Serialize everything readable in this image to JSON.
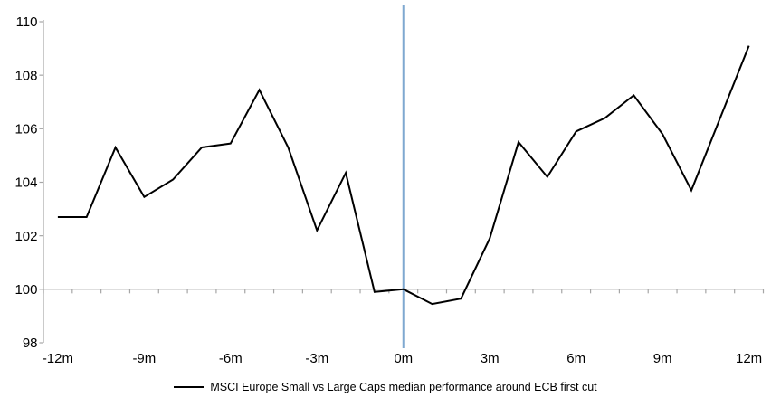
{
  "chart_data": {
    "type": "line",
    "title": "",
    "xlabel": "",
    "ylabel": "",
    "xlim": [
      -12.5,
      12.5
    ],
    "ylim": [
      98,
      110
    ],
    "yticks": [
      98,
      100,
      102,
      104,
      106,
      108,
      110
    ],
    "xticks": [
      {
        "m": -12,
        "label": "-12m"
      },
      {
        "m": -9,
        "label": "-9m"
      },
      {
        "m": -6,
        "label": "-6m"
      },
      {
        "m": -3,
        "label": "-3m"
      },
      {
        "m": 0,
        "label": "0m"
      },
      {
        "m": 3,
        "label": "3m"
      },
      {
        "m": 6,
        "label": "6m"
      },
      {
        "m": 9,
        "label": "9m"
      },
      {
        "m": 12,
        "label": "12m"
      }
    ],
    "baseline_value": 100,
    "event_line": {
      "x": 0
    },
    "grid": "baseline-only",
    "legend_position": "bottom",
    "series": [
      {
        "name": "MSCI Europe Small vs Large Caps median performance around ECB first cut",
        "x": [
          -12,
          -11,
          -10,
          -9,
          -8,
          -7,
          -6,
          -5,
          -4,
          -3,
          -2,
          -1,
          0,
          1,
          2,
          3,
          4,
          5,
          6,
          7,
          8,
          9,
          10,
          11,
          12
        ],
        "values": [
          102.7,
          102.7,
          105.3,
          103.45,
          104.1,
          105.3,
          105.45,
          107.45,
          105.3,
          102.2,
          104.35,
          99.9,
          100.0,
          99.45,
          99.65,
          101.9,
          105.5,
          104.2,
          105.9,
          106.4,
          107.25,
          105.8,
          103.7,
          106.4,
          109.1
        ]
      }
    ],
    "colors": {
      "series": "#000000",
      "event_line": "#7FA8D0",
      "axis": "#A6A6A6",
      "text": "#000000",
      "background": "#FFFFFF"
    }
  }
}
